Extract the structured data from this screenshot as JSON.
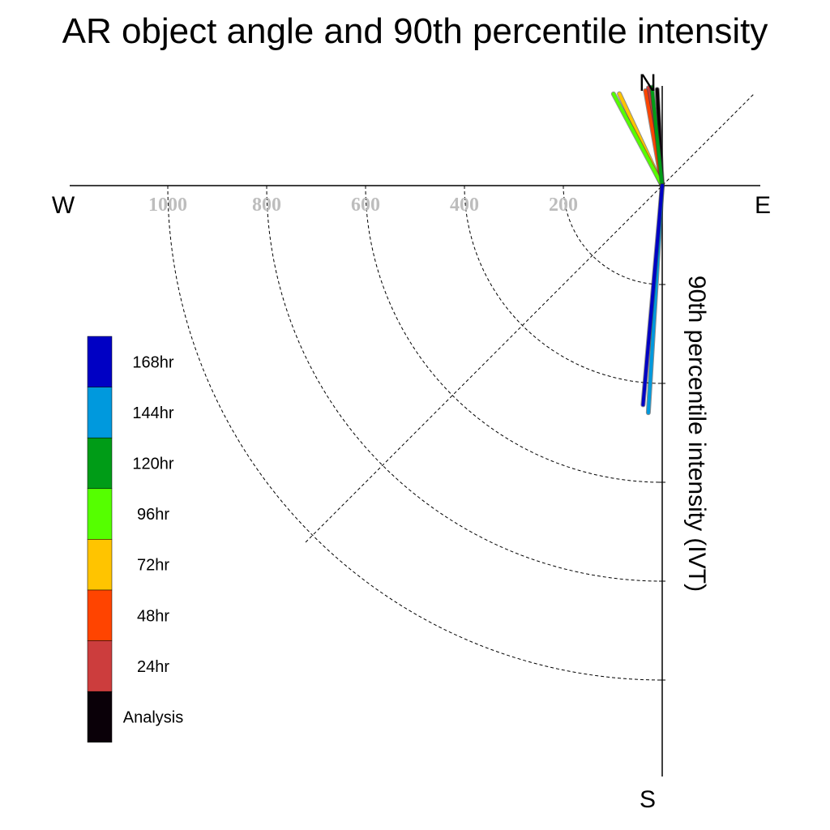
{
  "title": "AR object angle and 90th percentile intensity",
  "chart_data": {
    "type": "polar-line",
    "title": "AR object angle and 90th percentile intensity",
    "ylabel": "90th percentile intensity (IVT)",
    "compass": {
      "north": "N",
      "south": "S",
      "east": "E",
      "west": "W"
    },
    "radial_ticks": [
      {
        "value": 200,
        "label": "200"
      },
      {
        "value": 400,
        "label": "400"
      },
      {
        "value": 600,
        "label": "600"
      },
      {
        "value": 800,
        "label": "800"
      },
      {
        "value": 1000,
        "label": "1000"
      }
    ],
    "radial_max": 1200,
    "series": [
      {
        "name": "Analysis",
        "color": "#0a0008",
        "angle_deg": -3,
        "intensity": 195
      },
      {
        "name": "24hr",
        "color": "#cc3d3d",
        "angle_deg": -8,
        "intensity": 200
      },
      {
        "name": "48hr",
        "color": "#ff4400",
        "angle_deg": -10,
        "intensity": 195
      },
      {
        "name": "72hr",
        "color": "#ffc400",
        "angle_deg": -25,
        "intensity": 205
      },
      {
        "name": "96hr",
        "color": "#55ff00",
        "angle_deg": -28,
        "intensity": 210
      },
      {
        "name": "120hr",
        "color": "#009c17",
        "angle_deg": -6,
        "intensity": 200
      },
      {
        "name": "144hr",
        "color": "#0099dd",
        "angle_deg": 183.5,
        "intensity": 460
      },
      {
        "name": "168hr",
        "color": "#0000c4",
        "angle_deg": 185,
        "intensity": 445
      }
    ],
    "legend": {
      "placement": "left",
      "entries": [
        {
          "label": "168hr",
          "color": "#0000c4"
        },
        {
          "label": "144hr",
          "color": "#0099dd"
        },
        {
          "label": "120hr",
          "color": "#009c17"
        },
        {
          "label": "96hr",
          "color": "#55ff00"
        },
        {
          "label": "72hr",
          "color": "#ffc400"
        },
        {
          "label": "48hr",
          "color": "#ff4400"
        },
        {
          "label": "24hr",
          "color": "#cc3d3d"
        },
        {
          "label": "Analysis",
          "color": "#0a0008"
        }
      ]
    }
  }
}
